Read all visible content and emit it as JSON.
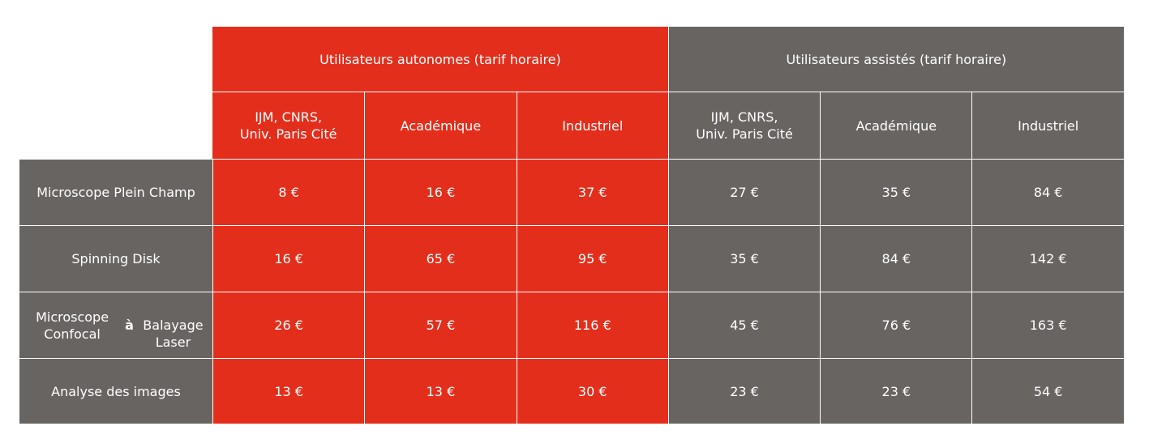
{
  "groups": [
    {
      "label": "Utilisateurs autonomes (tarif horaire)",
      "color": "#e42e1c"
    },
    {
      "label": "Utilisateurs assistés (tarif horaire)",
      "color": "#686462"
    }
  ],
  "subheaders": [
    "IJM, CNRS,\nUniv. Paris Cité",
    "Académique",
    "Industriel",
    "IJM, CNRS,\nUniv. Paris Cité",
    "Académique",
    "Industriel"
  ],
  "rows": [
    {
      "label": "Microscope Plein Champ",
      "values": [
        "8 €",
        "16 €",
        "37 €",
        "27 €",
        "35 €",
        "84 €"
      ]
    },
    {
      "label": "Spinning Disk",
      "values": [
        "16 €",
        "65 €",
        "95 €",
        "35 €",
        "84 €",
        "142 €"
      ]
    },
    {
      "label_pre": "Microscope Confocal ",
      "label_bold": "à",
      "label_post": "\nBalayage Laser",
      "values": [
        "26 €",
        "57 €",
        "116 €",
        "45 €",
        "76 €",
        "163 €"
      ]
    },
    {
      "label": "Analyse des images",
      "values": [
        "13 €",
        "13 €",
        "30 €",
        "23 €",
        "23 €",
        "54 €"
      ]
    }
  ]
}
